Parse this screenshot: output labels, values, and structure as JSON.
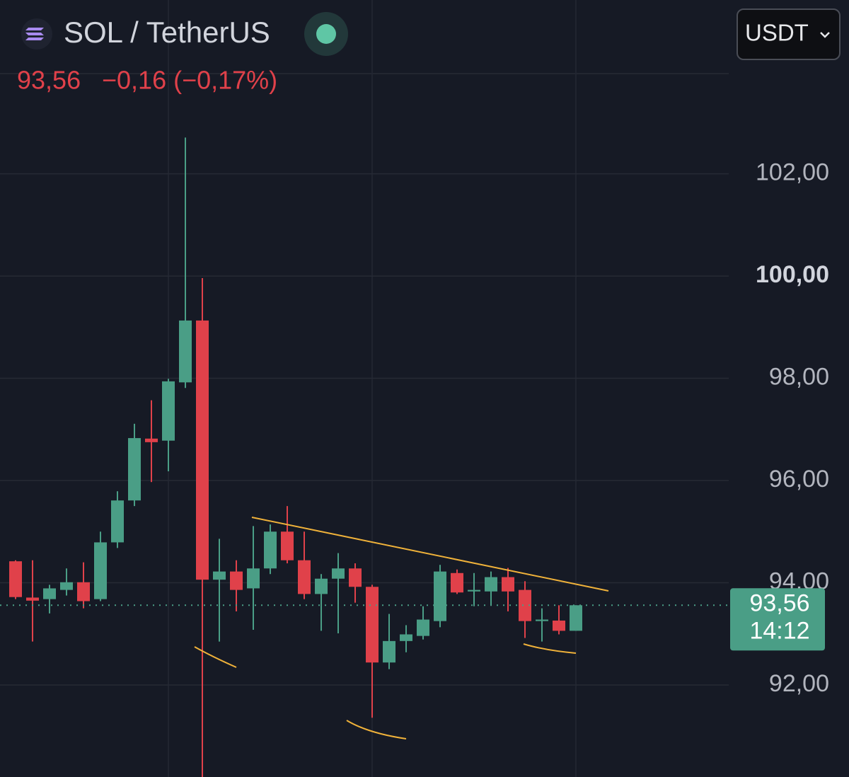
{
  "chart_data": {
    "type": "candlestick",
    "title": "SOL / TetherUS",
    "currency": "USDT",
    "last_price": {
      "value": 93.56,
      "label": "93,56"
    },
    "change": "−0,16 (−0,17%)",
    "countdown": "14:12",
    "up_color": "#4a9e86",
    "down_color": "#e0414a",
    "grid": true,
    "ylim": [
      90.2,
      105.4
    ],
    "yticks": [
      {
        "value": 92,
        "label": "92,00"
      },
      {
        "value": 94,
        "label": "94,00"
      },
      {
        "value": 96,
        "label": "96,00"
      },
      {
        "value": 98,
        "label": "98,00"
      },
      {
        "value": 100,
        "label": "100,00"
      },
      {
        "value": 102,
        "label": "102,00"
      }
    ],
    "open": [
      94.42,
      93.71,
      93.68,
      93.86,
      94.01,
      93.68,
      94.79,
      95.61,
      96.82,
      96.78,
      97.92,
      99.13,
      94.06,
      94.22,
      93.89,
      94.28,
      95.0,
      94.44,
      93.78,
      94.08,
      94.28,
      93.92,
      92.44,
      92.86,
      92.96,
      93.25,
      94.19,
      93.83,
      93.83,
      94.11,
      93.86,
      93.25,
      93.26,
      93.06
    ],
    "high": [
      94.44,
      94.44,
      93.96,
      94.28,
      94.4,
      95.0,
      95.79,
      97.11,
      97.57,
      97.99,
      102.71,
      99.96,
      94.86,
      94.44,
      95.11,
      95.14,
      95.5,
      95.0,
      94.17,
      94.58,
      94.38,
      93.96,
      93.39,
      93.17,
      93.54,
      94.35,
      94.26,
      94.19,
      94.22,
      94.29,
      94.03,
      93.5,
      93.56,
      93.56
    ],
    "low": [
      93.68,
      92.85,
      93.4,
      93.75,
      93.5,
      93.64,
      94.68,
      95.5,
      95.97,
      96.18,
      97.81,
      90.0,
      92.85,
      93.44,
      93.08,
      94.17,
      94.38,
      93.68,
      93.06,
      93.01,
      93.61,
      91.36,
      92.31,
      92.64,
      92.89,
      93.13,
      93.78,
      93.54,
      93.57,
      93.44,
      92.92,
      92.85,
      92.99,
      93.06
    ],
    "close": [
      93.72,
      93.65,
      93.89,
      94.01,
      93.64,
      94.79,
      95.61,
      96.83,
      96.75,
      97.94,
      99.13,
      94.06,
      94.22,
      93.86,
      94.28,
      95.0,
      94.44,
      93.78,
      94.08,
      94.28,
      93.92,
      92.44,
      92.86,
      92.99,
      93.28,
      94.22,
      93.81,
      93.86,
      94.11,
      93.83,
      93.25,
      93.28,
      93.06,
      93.56
    ]
  }
}
